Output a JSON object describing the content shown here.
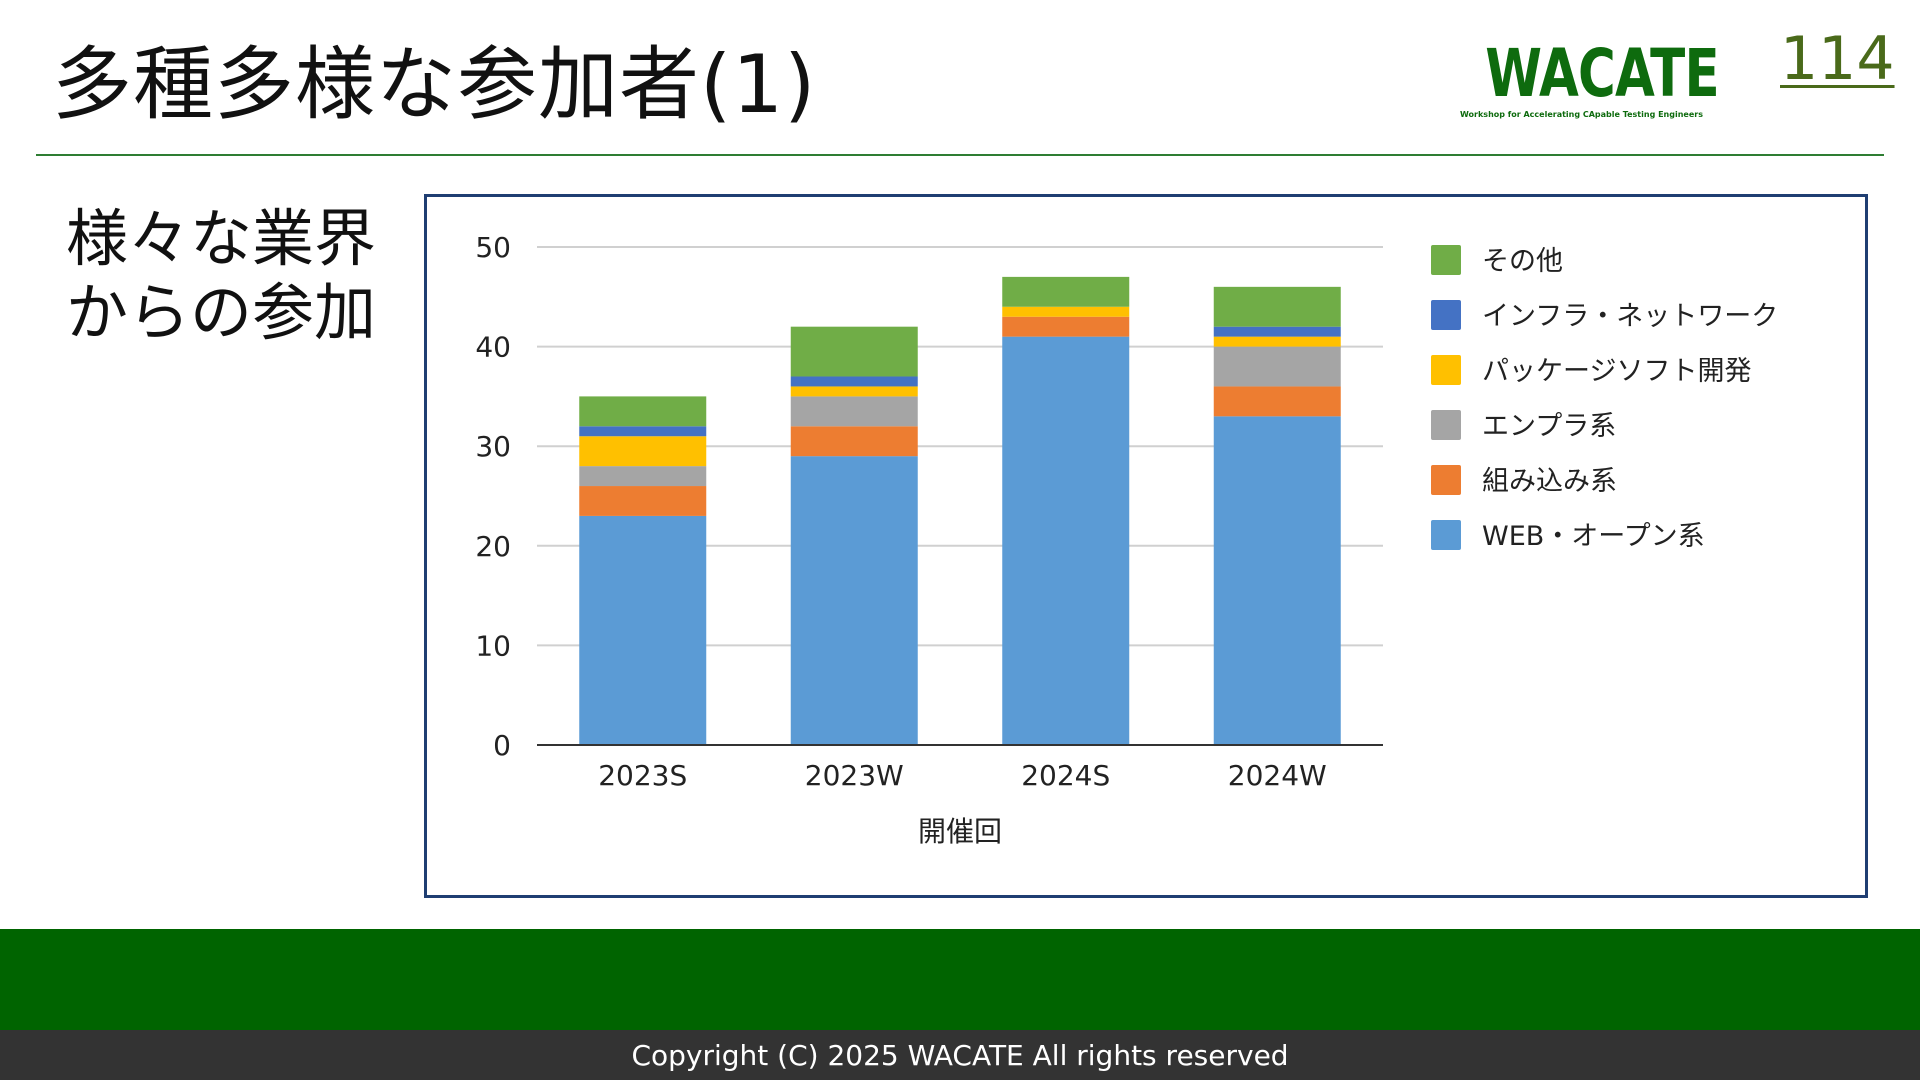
{
  "slide": {
    "title": "多種多様な参加者(1)",
    "page_number": "114",
    "subtitle_lines": [
      "様々な業界",
      "からの参加"
    ],
    "footer": "Copyright (C) 2025 WACATE All rights reserved"
  },
  "logo": {
    "text": "WACATE",
    "tagline": "Workshop for Accelerating CApable Testing Engineers",
    "color": "#0e6b0e"
  },
  "colors": {
    "rule": "#2e7d32",
    "footer_band": "#006400",
    "footer_bar": "#333333",
    "frame": "#1f3e72"
  },
  "chart_data": {
    "type": "bar",
    "stacked": true,
    "categories": [
      "2023S",
      "2023W",
      "2024S",
      "2024W"
    ],
    "xlabel": "開催回",
    "ylabel": "",
    "ylim": [
      0,
      50
    ],
    "yticks": [
      0,
      10,
      20,
      30,
      40,
      50
    ],
    "grid": true,
    "legend_position": "right",
    "series": [
      {
        "name": "WEB・オープン系",
        "color": "#5b9bd5",
        "values": [
          23,
          29,
          41,
          33
        ]
      },
      {
        "name": "組み込み系",
        "color": "#ed7d31",
        "values": [
          3,
          3,
          2,
          3
        ]
      },
      {
        "name": "エンプラ系",
        "color": "#a5a5a5",
        "values": [
          2,
          3,
          0,
          4
        ]
      },
      {
        "name": "パッケージソフト開発",
        "color": "#ffc000",
        "values": [
          3,
          1,
          1,
          1
        ]
      },
      {
        "name": "インフラ・ネットワーク",
        "color": "#4472c4",
        "values": [
          1,
          1,
          0,
          1
        ]
      },
      {
        "name": "その他",
        "color": "#70ad47",
        "values": [
          3,
          5,
          3,
          4
        ]
      }
    ]
  }
}
